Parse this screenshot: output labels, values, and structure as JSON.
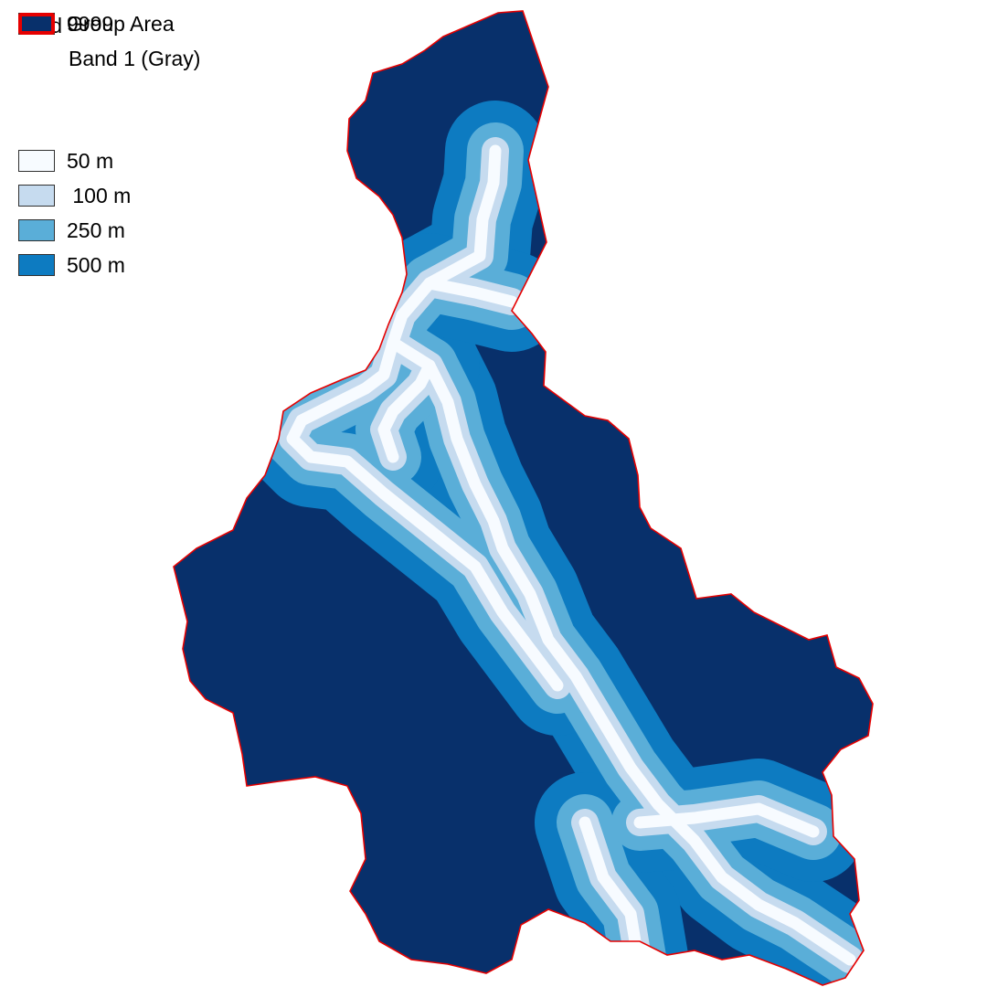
{
  "legend": {
    "title": "road",
    "subtitle": "Band 1 (Gray)",
    "items": [
      {
        "label": "50 m",
        "color": "#f7fbff"
      },
      {
        "label": " 100 m",
        "color": "#c6dbef"
      },
      {
        "label": "250 m",
        "color": "#5aaed8"
      },
      {
        "label": "500 m",
        "color": "#0d7bc1"
      },
      {
        "label": "9999",
        "color": "#08306b"
      },
      {
        "label": "Group Area",
        "color": "#e60000"
      }
    ]
  },
  "map": {
    "background_color": "#08306b",
    "boundary_color": "#e60000",
    "buffer_colors": [
      "#0d7bc1",
      "#5aaed8",
      "#c6dbef",
      "#f7fbff"
    ]
  }
}
